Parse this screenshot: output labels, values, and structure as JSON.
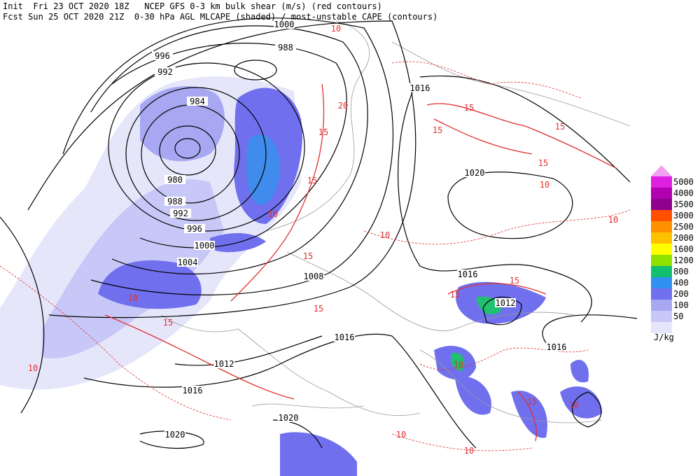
{
  "header": {
    "line1": "Init  Fri 23 OCT 2020 18Z   NCEP GFS 0-3 km bulk shear (m/s) (red contours)",
    "line2": "Fcst Sun 25 OCT 2020 21Z  0-30 hPa AGL MLCAPE (shaded) / most-unstable CAPE (contours)"
  },
  "isobar_labels": [
    1000,
    996,
    992,
    988,
    984,
    980,
    988,
    992,
    996,
    1000,
    1004,
    1008,
    1016,
    1020,
    1016,
    1012,
    1016,
    1016,
    1012,
    1016,
    1020,
    1020
  ],
  "shear_labels": [
    10,
    20,
    15,
    15,
    15,
    15,
    15,
    15,
    10,
    10,
    10,
    15,
    15,
    15,
    10,
    10,
    15,
    10,
    10,
    10,
    10,
    10,
    15,
    15
  ],
  "colorbar": {
    "labels": [
      5000,
      4000,
      3500,
      3000,
      2500,
      2000,
      1600,
      1200,
      800,
      400,
      200,
      100,
      50
    ],
    "colors": [
      "#f0a0f0",
      "#e020e0",
      "#b000b0",
      "#900090",
      "#ff5000",
      "#ff9000",
      "#ffc000",
      "#ffff00",
      "#90e000",
      "#10c070",
      "#3090f0",
      "#7070ee",
      "#a8a8f2",
      "#c8c8f8",
      "#e6e6fb"
    ],
    "unit": "J/kg"
  }
}
